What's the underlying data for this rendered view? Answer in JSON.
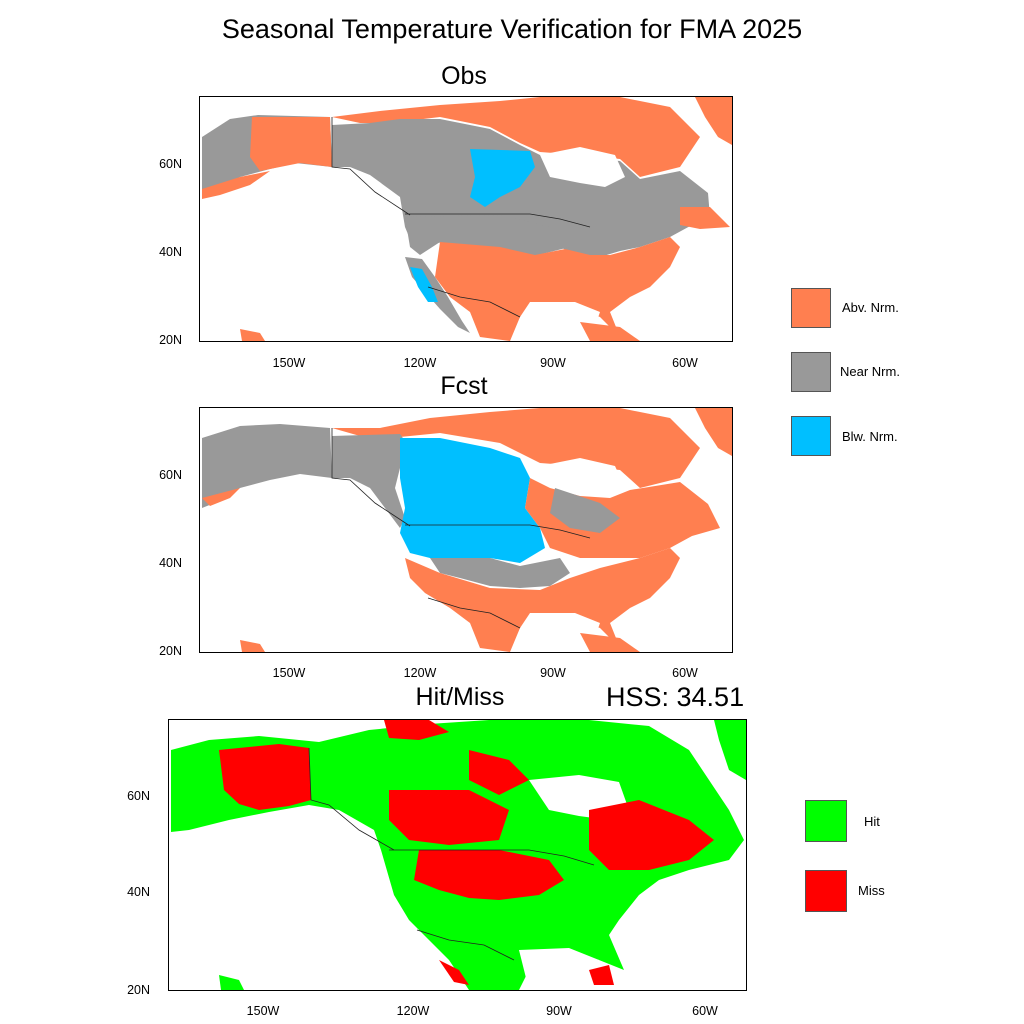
{
  "title": "Seasonal Temperature Verification for FMA 2025",
  "panels": {
    "obs": {
      "title": "Obs"
    },
    "fcst": {
      "title": "Fcst"
    },
    "hitmiss": {
      "title": "Hit/Miss",
      "hss": "HSS: 34.51"
    }
  },
  "axis": {
    "lat_labels": [
      "60N",
      "40N",
      "20N"
    ],
    "lon_labels": [
      "150W",
      "120W",
      "90W",
      "60W"
    ]
  },
  "category_legend": [
    {
      "label": "Abv. Nrm.",
      "color": "#ff7f50"
    },
    {
      "label": "Near Nrm.",
      "color": "#999999"
    },
    {
      "label": "Blw. Nrm.",
      "color": "#00bfff"
    }
  ],
  "hitmiss_legend": [
    {
      "label": "Hit",
      "color": "#00ff00"
    },
    {
      "label": "Miss",
      "color": "#ff0000"
    }
  ]
}
